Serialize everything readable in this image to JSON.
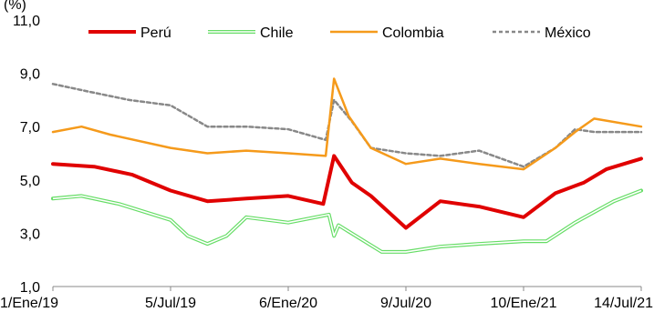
{
  "chart_data": {
    "type": "line",
    "ylabel": "(%)",
    "ylim": [
      1.0,
      11.0
    ],
    "yticks": [
      "11,0",
      "9,0",
      "7,0",
      "5,0",
      "3,0",
      "1,0"
    ],
    "xticks": [
      "1/Ene/19",
      "5/Jul/19",
      "6/Ene/20",
      "9/Jul/20",
      "10/Ene/21",
      "14/Jul/21"
    ],
    "grid": false,
    "legend_position": "top",
    "colors": {
      "peru": "#e00000",
      "chile": "#66dd66",
      "colombia": "#f59a1b",
      "mexico": "#888888"
    },
    "series": [
      {
        "name": "Perú",
        "values": [
          [
            "1/Ene/19",
            5.6
          ],
          [
            "7/Mar/19",
            5.5
          ],
          [
            "5/May/19",
            5.2
          ],
          [
            "5/Jul/19",
            4.6
          ],
          [
            "1/Sep/19",
            4.2
          ],
          [
            "1/Nov/19",
            4.3
          ],
          [
            "6/Ene/20",
            4.4
          ],
          [
            "1/Mar/20",
            4.1
          ],
          [
            "18/Mar/20",
            5.9
          ],
          [
            "15/Abr/20",
            4.9
          ],
          [
            "15/May/20",
            4.4
          ],
          [
            "9/Jul/20",
            3.2
          ],
          [
            "1/Sep/20",
            4.2
          ],
          [
            "1/Nov/20",
            4.0
          ],
          [
            "10/Ene/21",
            3.6
          ],
          [
            "1/Mar/21",
            4.5
          ],
          [
            "15/Abr/21",
            4.9
          ],
          [
            "20/May/21",
            5.4
          ],
          [
            "14/Jul/21",
            5.8
          ]
        ]
      },
      {
        "name": "Chile",
        "values": [
          [
            "1/Ene/19",
            4.3
          ],
          [
            "15/Feb/19",
            4.4
          ],
          [
            "15/Abr/19",
            4.1
          ],
          [
            "5/Jul/19",
            3.5
          ],
          [
            "1/Ago/19",
            2.9
          ],
          [
            "1/Sep/19",
            2.6
          ],
          [
            "1/Oct/19",
            2.9
          ],
          [
            "1/Nov/19",
            3.6
          ],
          [
            "6/Ene/20",
            3.4
          ],
          [
            "10/Mar/20",
            3.7
          ],
          [
            "18/Mar/20",
            2.9
          ],
          [
            "25/Mar/20",
            3.3
          ],
          [
            "1/Jun/20",
            2.3
          ],
          [
            "9/Jul/20",
            2.3
          ],
          [
            "1/Sep/20",
            2.5
          ],
          [
            "1/Nov/20",
            2.6
          ],
          [
            "10/Ene/21",
            2.7
          ],
          [
            "15/Feb/21",
            2.7
          ],
          [
            "1/Abr/21",
            3.4
          ],
          [
            "1/Jun/21",
            4.2
          ],
          [
            "14/Jul/21",
            4.6
          ]
        ]
      },
      {
        "name": "Colombia",
        "values": [
          [
            "1/Ene/19",
            6.8
          ],
          [
            "15/Feb/19",
            7.0
          ],
          [
            "1/Abr/19",
            6.7
          ],
          [
            "5/Jul/19",
            6.2
          ],
          [
            "1/Sep/19",
            6.0
          ],
          [
            "1/Nov/19",
            6.1
          ],
          [
            "6/Ene/20",
            6.0
          ],
          [
            "5/Mar/20",
            5.9
          ],
          [
            "18/Mar/20",
            8.8
          ],
          [
            "10/Abr/20",
            7.4
          ],
          [
            "15/May/20",
            6.2
          ],
          [
            "9/Jul/20",
            5.6
          ],
          [
            "1/Sep/20",
            5.8
          ],
          [
            "1/Nov/20",
            5.6
          ],
          [
            "10/Ene/21",
            5.4
          ],
          [
            "1/Mar/21",
            6.2
          ],
          [
            "1/Abr/21",
            6.8
          ],
          [
            "1/May/21",
            7.3
          ],
          [
            "14/Jul/21",
            7.0
          ]
        ]
      },
      {
        "name": "México",
        "values": [
          [
            "1/Ene/19",
            8.6
          ],
          [
            "1/Mar/19",
            8.3
          ],
          [
            "1/May/19",
            8.0
          ],
          [
            "5/Jul/19",
            7.8
          ],
          [
            "1/Sep/19",
            7.0
          ],
          [
            "1/Nov/19",
            7.0
          ],
          [
            "6/Ene/20",
            6.9
          ],
          [
            "5/Mar/20",
            6.5
          ],
          [
            "18/Mar/20",
            8.0
          ],
          [
            "15/Abr/20",
            7.2
          ],
          [
            "15/May/20",
            6.2
          ],
          [
            "9/Jul/20",
            6.0
          ],
          [
            "1/Sep/20",
            5.9
          ],
          [
            "1/Nov/20",
            6.1
          ],
          [
            "10/Ene/21",
            5.5
          ],
          [
            "1/Mar/21",
            6.2
          ],
          [
            "1/Abr/21",
            6.9
          ],
          [
            "1/May/21",
            6.8
          ],
          [
            "14/Jul/21",
            6.8
          ]
        ]
      }
    ]
  }
}
